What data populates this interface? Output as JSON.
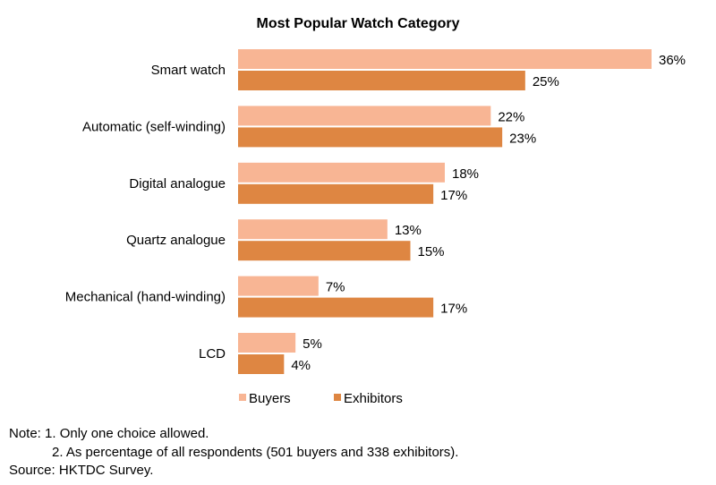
{
  "chart_data": {
    "type": "bar",
    "orientation": "horizontal",
    "title": "Most Popular Watch Category",
    "categories": [
      "Smart watch",
      "Automatic (self-winding)",
      "Digital analogue",
      "Quartz analogue",
      "Mechanical (hand-winding)",
      "LCD"
    ],
    "series": [
      {
        "name": "Buyers",
        "values": [
          36,
          22,
          18,
          13,
          7,
          5
        ],
        "labels": [
          "36%",
          "22%",
          "18%",
          "13%",
          "7%",
          "5%"
        ],
        "color": "#F8B594"
      },
      {
        "name": "Exhibitors",
        "values": [
          25,
          23,
          17,
          15,
          17,
          4
        ],
        "labels": [
          "25%",
          "23%",
          "17%",
          "15%",
          "17%",
          "4%"
        ],
        "color": "#DE8642"
      }
    ],
    "xlim": [
      0,
      36
    ],
    "grid": false,
    "legend": "bottom"
  },
  "notes": {
    "line1": "Note: 1. Only one choice allowed.",
    "line2": "2. As percentage of all respondents (501 buyers and 338 exhibitors).",
    "source": "Source: HKTDC Survey."
  }
}
